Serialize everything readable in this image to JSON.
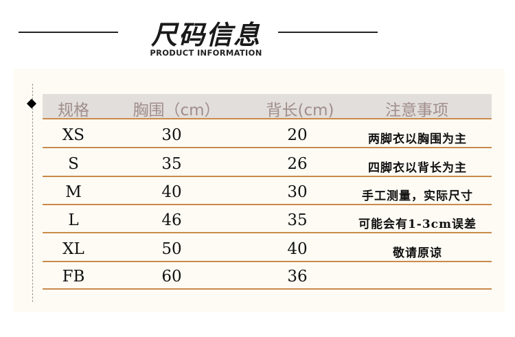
{
  "header": {
    "title": "尺码信息",
    "subtitle": "PRODUCT INFORMATION"
  },
  "colors": {
    "accent_line": "#c98a4b",
    "header_bg": "#e2dedb",
    "header_text": "#a08e8c",
    "panel_bg": "#fdfbf4"
  },
  "table": {
    "columns": [
      "规格",
      "胸围（cm）",
      "背长(cm)",
      "注意事项"
    ],
    "rows": [
      {
        "size": "XS",
        "chest": "30",
        "back": "20",
        "note": "两脚衣以胸围为主"
      },
      {
        "size": "S",
        "chest": "35",
        "back": "26",
        "note": "四脚衣以背长为主"
      },
      {
        "size": "M",
        "chest": "40",
        "back": "30",
        "note": "手工测量，实际尺寸"
      },
      {
        "size": "L",
        "chest": "46",
        "back": "35",
        "note": "可能会有1-3cm误差"
      },
      {
        "size": "XL",
        "chest": "50",
        "back": "40",
        "note": "敬请原谅"
      },
      {
        "size": "FB",
        "chest": "60",
        "back": "36",
        "note": ""
      }
    ]
  }
}
